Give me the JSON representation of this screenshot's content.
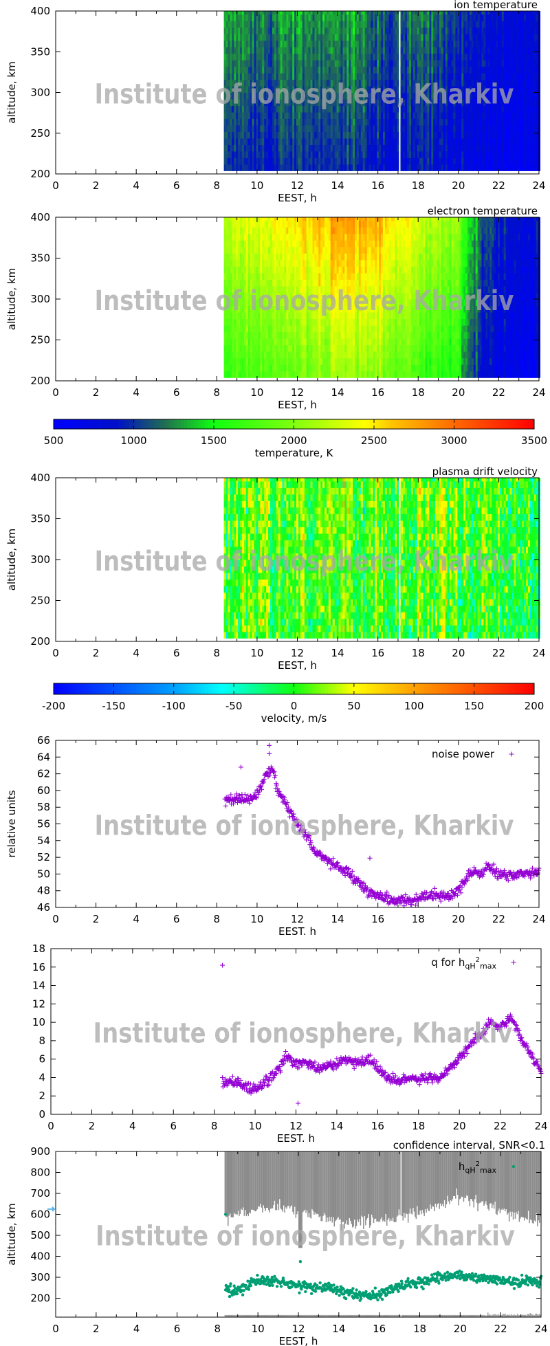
{
  "watermark": "Institute of ionosphere, Kharkiv",
  "colors": {
    "purple": "#9400d3",
    "green": "#009e73",
    "gray": "#8c8c8c",
    "arrow": "#56b4e9"
  },
  "colorbars": [
    {
      "label": "temperature, K",
      "range": [
        500,
        3500
      ],
      "ticks": [
        "500",
        "1000",
        "1500",
        "2000",
        "2500",
        "3000",
        "3500"
      ],
      "stops": [
        [
          500,
          "#0000ff"
        ],
        [
          900,
          "#0010c8"
        ],
        [
          1200,
          "#207050"
        ],
        [
          1500,
          "#10ff10"
        ],
        [
          2000,
          "#80ff10"
        ],
        [
          2450,
          "#ffff00"
        ],
        [
          2600,
          "#ffc800"
        ],
        [
          3000,
          "#ff6a00"
        ],
        [
          3500,
          "#ff0000"
        ]
      ]
    },
    {
      "label": "velocity, m/s",
      "range": [
        -200,
        200
      ],
      "ticks": [
        "-200",
        "-150",
        "-100",
        "-50",
        "0",
        "50",
        "100",
        "150",
        "200"
      ],
      "stops": [
        [
          -200,
          "#0000ff"
        ],
        [
          -100,
          "#00a0ff"
        ],
        [
          -60,
          "#00ffff"
        ],
        [
          0,
          "#10ff10"
        ],
        [
          50,
          "#ffff00"
        ],
        [
          100,
          "#ffa000"
        ],
        [
          200,
          "#ff0000"
        ]
      ]
    }
  ],
  "chart_data": [
    {
      "type": "heatmap",
      "title": "ion temperature",
      "xlabel": "EEST, h",
      "ylabel": "altitude, km",
      "xlim": [
        0,
        24
      ],
      "ylim": [
        200,
        400
      ],
      "xticks": [
        "0",
        "2",
        "4",
        "6",
        "8",
        "10",
        "12",
        "14",
        "16",
        "18",
        "20",
        "22",
        "24"
      ],
      "yticks": [
        "200",
        "250",
        "300",
        "350",
        "400"
      ],
      "colorbar": 0,
      "data_start": 8.35,
      "gap_at": 17.05,
      "profile_time": [
        8.4,
        9,
        10,
        11,
        12,
        13,
        14,
        15,
        16,
        17,
        18,
        19,
        20,
        21,
        22,
        24
      ],
      "profile_value_K": [
        1100,
        1200,
        1100,
        1100,
        1150,
        1050,
        1150,
        1100,
        1000,
        950,
        1050,
        1050,
        900,
        800,
        700,
        650
      ]
    },
    {
      "type": "heatmap",
      "title": "electron temperature",
      "xlabel": "EEST, h",
      "ylabel": "altitude, km",
      "xlim": [
        0,
        24
      ],
      "ylim": [
        200,
        400
      ],
      "xticks": [
        "0",
        "2",
        "4",
        "6",
        "8",
        "10",
        "12",
        "14",
        "16",
        "18",
        "20",
        "22",
        "24"
      ],
      "yticks": [
        "200",
        "250",
        "300",
        "350",
        "400"
      ],
      "colorbar": 0,
      "data_start": 8.35,
      "profile_time": [
        8.4,
        9,
        10,
        11,
        12,
        13,
        14,
        15,
        16,
        17,
        18,
        19,
        20,
        20.5,
        21,
        22,
        24
      ],
      "profile_value_K": [
        1900,
        2000,
        2100,
        2200,
        2250,
        2300,
        2450,
        2400,
        2350,
        2200,
        2050,
        1900,
        1750,
        1300,
        1000,
        800,
        700
      ]
    },
    {
      "type": "heatmap",
      "title": "plasma drift velocity",
      "xlabel": "EEST, h",
      "ylabel": "altitude, km",
      "xlim": [
        0,
        24
      ],
      "ylim": [
        200,
        400
      ],
      "xticks": [
        "0",
        "2",
        "4",
        "6",
        "8",
        "10",
        "12",
        "14",
        "16",
        "18",
        "20",
        "22",
        "24"
      ],
      "yticks": [
        "200",
        "250",
        "300",
        "350",
        "400"
      ],
      "colorbar": 1,
      "data_start": 8.35,
      "gap_at": 17.05,
      "profile_time": [
        8.4,
        12,
        16,
        20,
        24
      ],
      "profile_value_ms": [
        0,
        5,
        10,
        0,
        -10
      ]
    },
    {
      "type": "scatter",
      "legend": "noise power",
      "xlabel": "EEST. h",
      "ylabel": "relative units",
      "xlim": [
        0,
        24
      ],
      "ylim": [
        46,
        66
      ],
      "marker": "plus",
      "xticks": [
        "0",
        "2",
        "4",
        "6",
        "8",
        "10",
        "12",
        "14",
        "16",
        "18",
        "20",
        "22",
        "24"
      ],
      "yticks": [
        "46",
        "48",
        "50",
        "52",
        "54",
        "56",
        "58",
        "60",
        "62",
        "64",
        "66"
      ],
      "x": [
        8.4,
        9,
        9.5,
        10,
        10.5,
        10.8,
        11,
        11.5,
        12,
        12.5,
        13,
        13.5,
        14,
        14.5,
        15,
        15.5,
        16,
        16.5,
        17,
        17.5,
        18,
        18.5,
        19,
        19.5,
        20,
        20.5,
        21,
        21.5,
        22,
        22.5,
        23,
        23.5,
        24
      ],
      "y": [
        59,
        59,
        59,
        59.5,
        62.2,
        62.5,
        60,
        58,
        56,
        54.5,
        52.5,
        51.5,
        51,
        50.3,
        49,
        48,
        47.3,
        47,
        46.9,
        46.8,
        47.1,
        47.5,
        47.5,
        47.3,
        48,
        50,
        50.2,
        50.8,
        49.9,
        49.8,
        50,
        50.2,
        50.4
      ],
      "outliers": [
        [
          10.6,
          65.4
        ],
        [
          10.6,
          64.4
        ],
        [
          9.2,
          62.8
        ],
        [
          15.6,
          51.9
        ]
      ]
    },
    {
      "type": "scatter",
      "legend": "q for h",
      "legend_sub": "qH",
      "legend_sup": "2",
      "legend_sub2": "max",
      "xlabel": "EEST. h",
      "ylabel": "",
      "xlim": [
        0,
        24
      ],
      "ylim": [
        0,
        18
      ],
      "marker": "plus",
      "xticks": [
        "0",
        "2",
        "4",
        "6",
        "8",
        "10",
        "12",
        "14",
        "16",
        "18",
        "20",
        "22",
        "24"
      ],
      "yticks": [
        "0",
        "2",
        "4",
        "6",
        "8",
        "10",
        "12",
        "14",
        "16",
        "18"
      ],
      "x": [
        8.4,
        9,
        9.5,
        10,
        10.5,
        11,
        11.5,
        12,
        12.5,
        13,
        13.5,
        14,
        14.5,
        15,
        15.5,
        16,
        16.5,
        17,
        17.5,
        18,
        18.5,
        19,
        19.5,
        20,
        20.5,
        21,
        21.5,
        22,
        22.5,
        23,
        23.5,
        24
      ],
      "y": [
        3.5,
        3.5,
        3.2,
        2.5,
        3.5,
        4.5,
        6.2,
        5.5,
        5.8,
        5,
        5.2,
        5.5,
        6,
        5.5,
        6,
        5,
        4,
        3.6,
        4,
        3.8,
        4,
        4,
        5,
        6,
        7.5,
        8.5,
        10,
        9.5,
        10.5,
        8.5,
        6.5,
        4.8
      ],
      "outliers": [
        [
          8.4,
          16.2
        ],
        [
          12.1,
          1.2
        ]
      ]
    },
    {
      "type": "scatter",
      "title": "confidence interval, SNR<0.1",
      "legend": "h",
      "legend_sub": "qH",
      "legend_sup": "2",
      "legend_sub2": "max",
      "xlabel": "EEST, h",
      "ylabel": "altitude, km",
      "xlim": [
        0,
        24
      ],
      "ylim": [
        110,
        900
      ],
      "marker": "dot",
      "xticks": [
        "0",
        "2",
        "4",
        "6",
        "8",
        "10",
        "12",
        "14",
        "16",
        "18",
        "20",
        "22",
        "24"
      ],
      "yticks": [
        "200",
        "300",
        "400",
        "500",
        "600",
        "700",
        "800",
        "900"
      ],
      "x": [
        8.4,
        9,
        9.5,
        10,
        10.5,
        11,
        11.5,
        12,
        12.5,
        13,
        13.5,
        14,
        14.5,
        15,
        15.5,
        16,
        16.5,
        17,
        17.5,
        18,
        18.5,
        19,
        19.5,
        20,
        20.5,
        21,
        21.5,
        22,
        22.5,
        23,
        23.5,
        24
      ],
      "y": [
        240,
        240,
        260,
        290,
        285,
        280,
        270,
        260,
        255,
        250,
        245,
        230,
        225,
        215,
        215,
        220,
        240,
        260,
        265,
        280,
        285,
        300,
        300,
        310,
        305,
        300,
        295,
        285,
        280,
        280,
        280,
        285
      ],
      "outliers": [
        [
          8.4,
          600
        ],
        [
          12.1,
          375
        ]
      ],
      "confidence_lower_bound_time": [
        8.4,
        10,
        11,
        12,
        13,
        14,
        15,
        16,
        17,
        18,
        19,
        20,
        21,
        22,
        23,
        24
      ],
      "confidence_lower_bound_km": [
        580,
        630,
        640,
        610,
        600,
        560,
        560,
        570,
        590,
        610,
        650,
        680,
        650,
        610,
        590,
        560
      ]
    }
  ]
}
